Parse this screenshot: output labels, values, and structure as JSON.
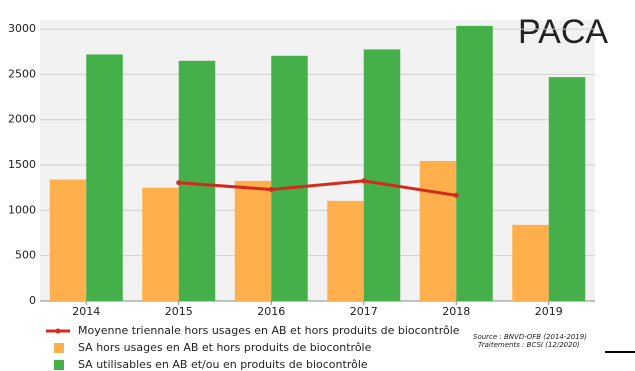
{
  "chart_data": {
    "type": "bar",
    "annotation": "PACA",
    "source": [
      "Source : BNVD-OFB (2014-2019)",
      "Traitements : BCSI (12/2020)"
    ],
    "categories": [
      "2014",
      "2015",
      "2016",
      "2017",
      "2018",
      "2019"
    ],
    "series": [
      {
        "name": "Moyenne triennale hors usages en AB et hors produits de biocontrôle",
        "type": "line",
        "color": "#d42a1e",
        "values": [
          null,
          1305,
          1230,
          1325,
          1165,
          null
        ]
      },
      {
        "name": "SA hors usages en AB et hors produits de biocontrôle",
        "type": "bar",
        "color": "#ffb04d",
        "values": [
          1340,
          1250,
          1325,
          1105,
          1545,
          840
        ]
      },
      {
        "name": "SA utilisables en AB et/ou en produits de biocontrôle",
        "type": "bar",
        "color": "#45b04a",
        "values": [
          2720,
          2650,
          2705,
          2775,
          3035,
          2470
        ]
      }
    ],
    "ylim": [
      0,
      3100
    ],
    "yticks": [
      0,
      500,
      1000,
      1500,
      2000,
      2500,
      3000
    ],
    "grid": true
  }
}
